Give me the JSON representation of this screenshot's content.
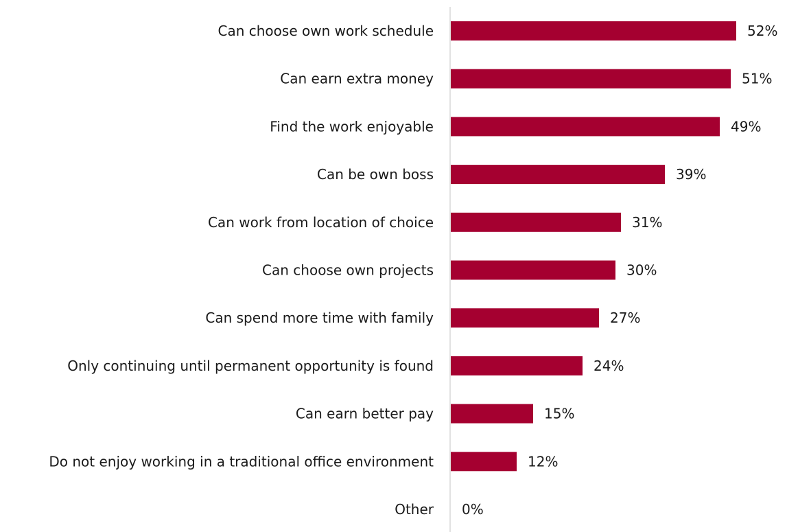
{
  "chart_data": {
    "type": "bar",
    "orientation": "horizontal",
    "categories": [
      "Can choose own work schedule",
      "Can earn extra money",
      "Find the work enjoyable",
      "Can be own boss",
      "Can work from location of choice",
      "Can choose own projects",
      "Can spend more time with family",
      "Only continuing until permanent opportunity is found",
      "Can earn better pay",
      "Do not enjoy working in a traditional office environment",
      "Other"
    ],
    "values": [
      52,
      51,
      49,
      39,
      31,
      30,
      27,
      24,
      15,
      12,
      0
    ],
    "value_labels": [
      "52%",
      "51%",
      "49%",
      "39%",
      "31%",
      "30%",
      "27%",
      "24%",
      "15%",
      "12%",
      "0%"
    ],
    "unit": "%",
    "title": "",
    "xlabel": "",
    "ylabel": "",
    "xlim": [
      0,
      65
    ],
    "grid": false,
    "legend": "none",
    "bar_color": "#a50030",
    "axis_color": "#d9d9d9"
  }
}
